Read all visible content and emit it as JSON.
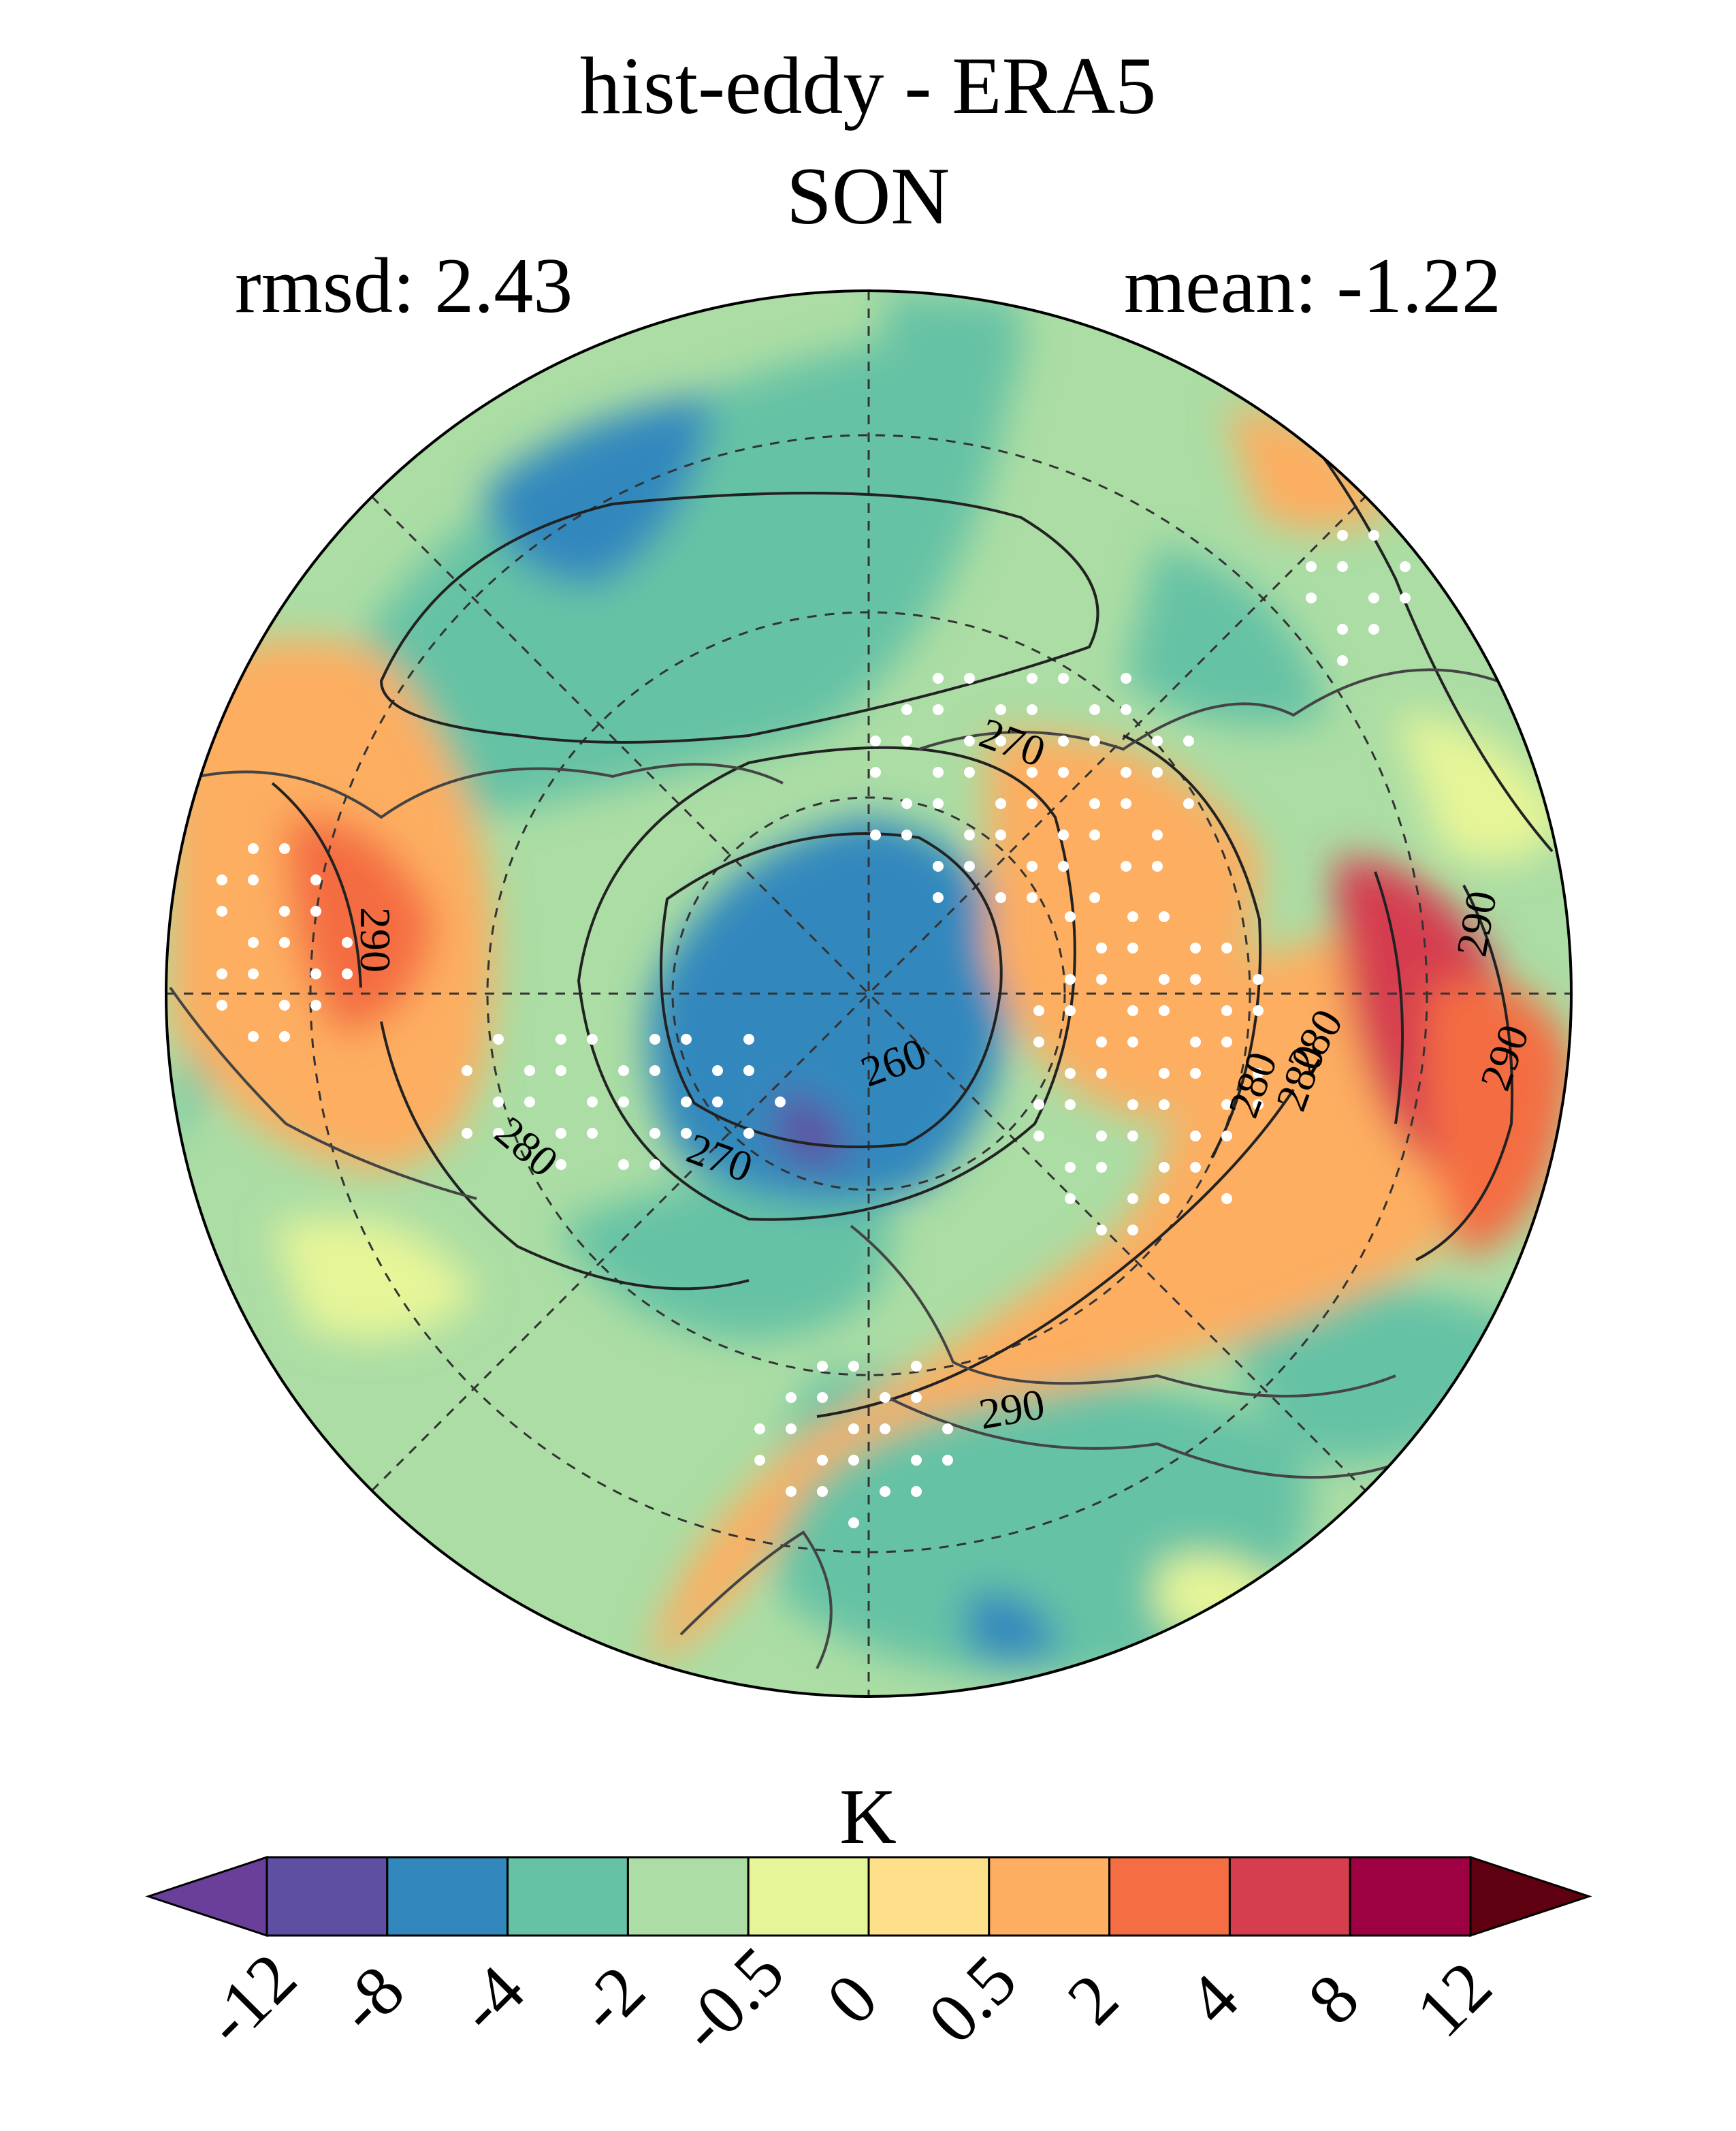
{
  "figure": {
    "title": "hist-eddy - ERA5",
    "subtitle": "SON",
    "rmsd_label": "rmsd: 2.43",
    "mean_label": "mean: -1.22"
  },
  "contour_labels": [
    "290",
    "280",
    "270",
    "260",
    "270",
    "280",
    "290",
    "290",
    "280",
    "280",
    "290"
  ],
  "colorbar": {
    "unit": "K",
    "ticks": [
      "-12",
      "-8",
      "-4",
      "-2",
      "-0.5",
      "0",
      "0.5",
      "2",
      "4",
      "8",
      "12"
    ],
    "colors": [
      "#5e4fa2",
      "#3288bd",
      "#66c2a5",
      "#abdda4",
      "#e6f598",
      "#fee08b",
      "#fdae61",
      "#f46d43",
      "#d53e4f",
      "#9e0142"
    ],
    "under_color": "#6a3f9a",
    "over_color": "#5e0010"
  }
}
